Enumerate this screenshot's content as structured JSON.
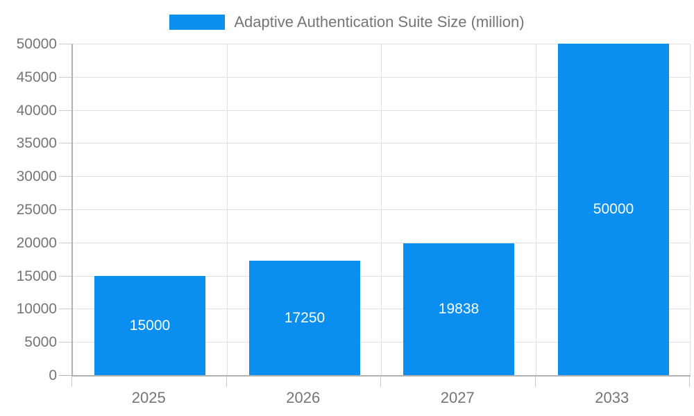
{
  "legend": {
    "label": "Adaptive Authentication Suite Size (million)"
  },
  "chart_data": {
    "type": "bar",
    "title": "Adaptive Authentication Suite Size (million)",
    "categories": [
      "2025",
      "2026",
      "2027",
      "2033"
    ],
    "values": [
      15000,
      17250,
      19838,
      50000
    ],
    "value_labels": [
      "15000",
      "17250",
      "19838",
      "50000"
    ],
    "xlabel": "",
    "ylabel": "",
    "ylim": [
      0,
      50000
    ],
    "ytick_step": 5000,
    "ytick_labels": [
      "0",
      "5000",
      "10000",
      "15000",
      "20000",
      "25000",
      "30000",
      "35000",
      "40000",
      "45000",
      "50000"
    ],
    "grid": true,
    "legend_position": "top",
    "value_labels_inside_bars": true,
    "colors": {
      "bar": "#0a8ff0",
      "axis_text": "#757575",
      "value_text": "#ffffff",
      "grid": "#e0e0e0",
      "axis_line": "#b1b1b1",
      "tick": "#cccccc"
    }
  }
}
